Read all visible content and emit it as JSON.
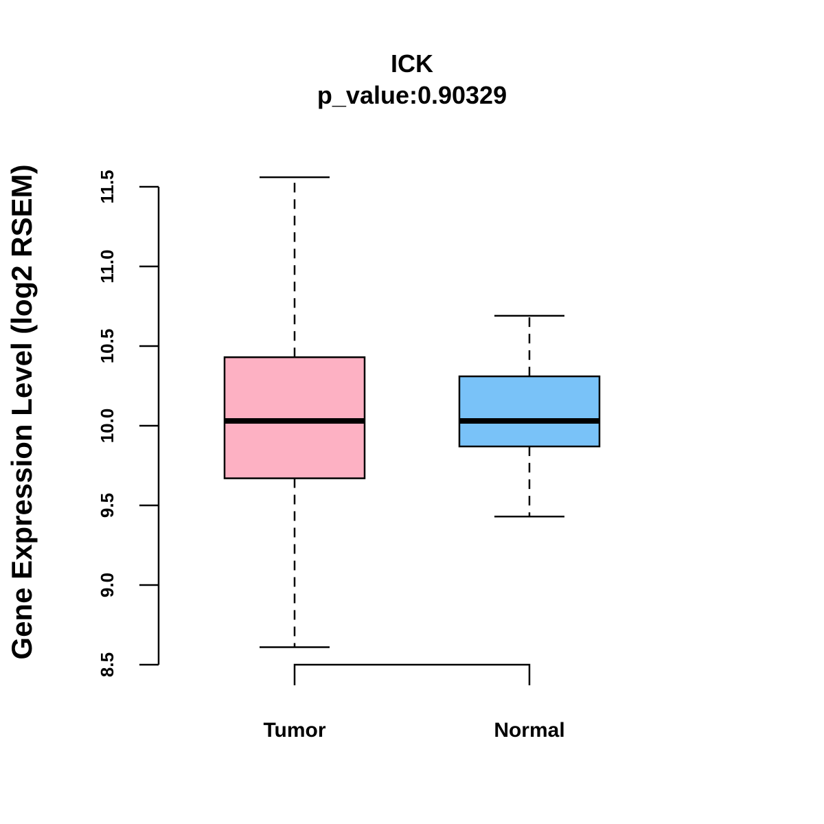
{
  "chart_data": {
    "type": "box",
    "title": "ICK",
    "subtitle": "p_value:0.90329",
    "xlabel": "",
    "ylabel": "Gene Expression Level (log2 RSEM)",
    "ylim": [
      8.5,
      11.5
    ],
    "yticks": [
      "8.5",
      "9.0",
      "9.5",
      "10.0",
      "10.5",
      "11.0",
      "11.5"
    ],
    "grid": false,
    "categories": [
      "Tumor",
      "Normal"
    ],
    "series": [
      {
        "name": "Tumor",
        "whisker_low": 8.61,
        "q1": 9.67,
        "median": 10.03,
        "q3": 10.43,
        "whisker_high": 11.56,
        "color": "#FDB1C3"
      },
      {
        "name": "Normal",
        "whisker_low": 9.43,
        "q1": 9.87,
        "median": 10.03,
        "q3": 10.31,
        "whisker_high": 10.69,
        "color": "#79C2F8"
      }
    ]
  }
}
